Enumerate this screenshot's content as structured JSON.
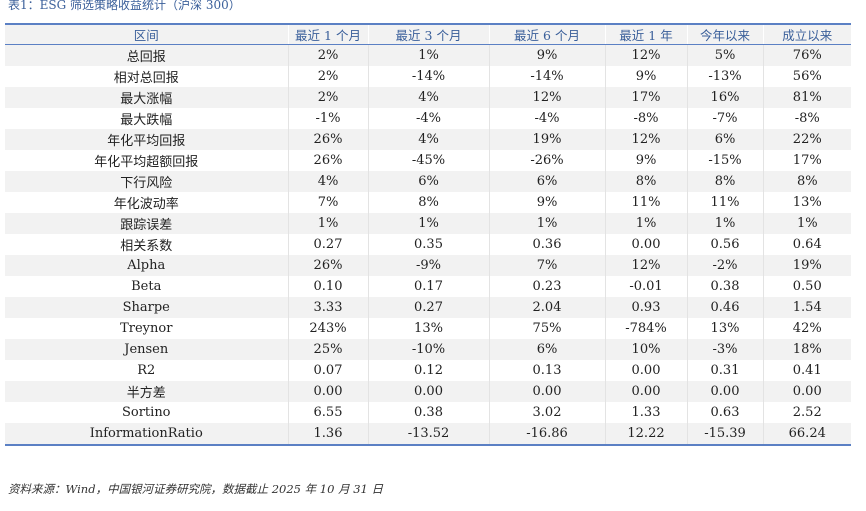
{
  "caption": "表1：ESG 筛选策略收益统计（沪深 300）",
  "columns": [
    "区间",
    "最近 1 个月",
    "最近 3 个月",
    "最近 6 个月",
    "最近 1 年",
    "今年以来",
    "成立以来"
  ],
  "rows": [
    [
      "总回报",
      "2%",
      "1%",
      "9%",
      "12%",
      "5%",
      "76%"
    ],
    [
      "相对总回报",
      "2%",
      "-14%",
      "-14%",
      "9%",
      "-13%",
      "56%"
    ],
    [
      "最大涨幅",
      "2%",
      "4%",
      "12%",
      "17%",
      "16%",
      "81%"
    ],
    [
      "最大跌幅",
      "-1%",
      "-4%",
      "-4%",
      "-8%",
      "-7%",
      "-8%"
    ],
    [
      "年化平均回报",
      "26%",
      "4%",
      "19%",
      "12%",
      "6%",
      "22%"
    ],
    [
      "年化平均超额回报",
      "26%",
      "-45%",
      "-26%",
      "9%",
      "-15%",
      "17%"
    ],
    [
      "下行风险",
      "4%",
      "6%",
      "6%",
      "8%",
      "8%",
      "8%"
    ],
    [
      "年化波动率",
      "7%",
      "8%",
      "9%",
      "11%",
      "11%",
      "13%"
    ],
    [
      "跟踪误差",
      "1%",
      "1%",
      "1%",
      "1%",
      "1%",
      "1%"
    ],
    [
      "相关系数",
      "0.27",
      "0.35",
      "0.36",
      "0.00",
      "0.56",
      "0.64"
    ],
    [
      "Alpha",
      "26%",
      "-9%",
      "7%",
      "12%",
      "-2%",
      "19%"
    ],
    [
      "Beta",
      "0.10",
      "0.17",
      "0.23",
      "-0.01",
      "0.38",
      "0.50"
    ],
    [
      "Sharpe",
      "3.33",
      "0.27",
      "2.04",
      "0.93",
      "0.46",
      "1.54"
    ],
    [
      "Treynor",
      "243%",
      "13%",
      "75%",
      "-784%",
      "13%",
      "42%"
    ],
    [
      "Jensen",
      "25%",
      "-10%",
      "6%",
      "10%",
      "-3%",
      "18%"
    ],
    [
      "R2",
      "0.07",
      "0.12",
      "0.13",
      "0.00",
      "0.31",
      "0.41"
    ],
    [
      "半方差",
      "0.00",
      "0.00",
      "0.00",
      "0.00",
      "0.00",
      "0.00"
    ],
    [
      "Sortino",
      "6.55",
      "0.38",
      "3.02",
      "1.33",
      "0.63",
      "2.52"
    ],
    [
      "InformationRatio",
      "1.36",
      "-13.52",
      "-16.86",
      "12.22",
      "-15.39",
      "66.24"
    ]
  ],
  "source": "资料来源：Wind，中国银河证券研究院，数据截止 2025 年 10 月 31 日"
}
